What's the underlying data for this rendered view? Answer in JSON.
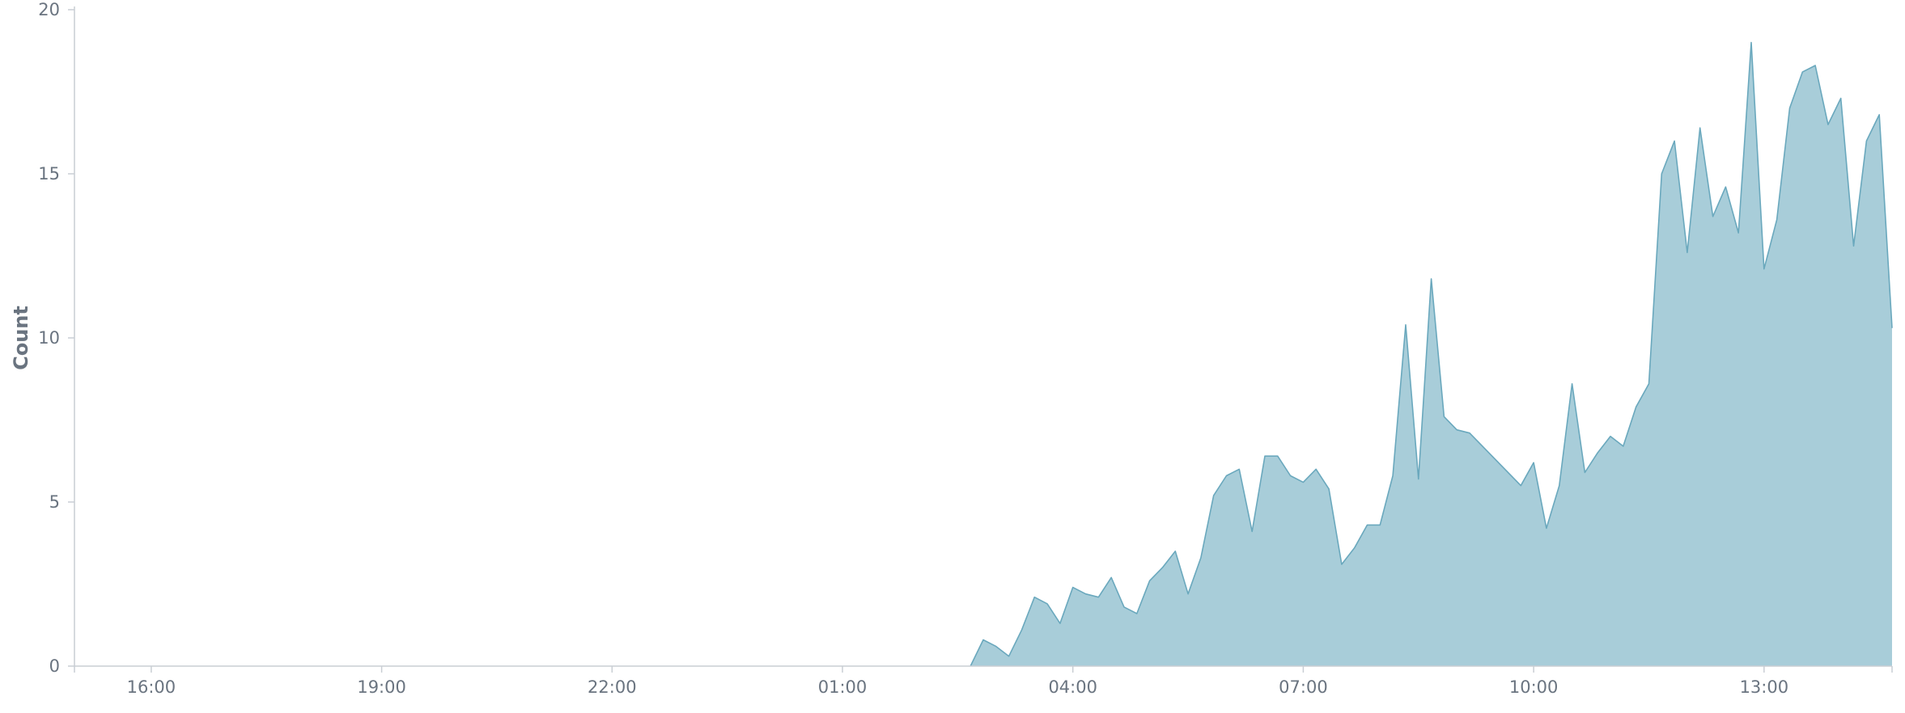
{
  "chart_data": {
    "type": "area",
    "title": "",
    "xlabel": "",
    "ylabel": "Count",
    "ylim": [
      0,
      20
    ],
    "xlim": [
      "15:00",
      "14:40"
    ],
    "x_ticks": [
      "16:00",
      "19:00",
      "22:00",
      "01:00",
      "04:00",
      "07:00",
      "10:00",
      "13:00"
    ],
    "y_ticks": [
      0,
      5,
      10,
      15,
      20
    ],
    "grid": false,
    "legend": "none",
    "colors": {
      "fill": "#a8cdd9",
      "stroke": "#6aa8bd",
      "axis": "#c9ced4",
      "text": "#6a7480"
    },
    "series": [
      {
        "values": [
          [
            "02:40",
            0
          ],
          [
            "02:50",
            0.8
          ],
          [
            "03:00",
            0.6
          ],
          [
            "03:10",
            0.3
          ],
          [
            "03:20",
            1.1
          ],
          [
            "03:30",
            2.1
          ],
          [
            "03:40",
            1.9
          ],
          [
            "03:50",
            1.3
          ],
          [
            "04:00",
            2.4
          ],
          [
            "04:10",
            2.2
          ],
          [
            "04:20",
            2.1
          ],
          [
            "04:30",
            2.7
          ],
          [
            "04:40",
            1.8
          ],
          [
            "04:50",
            1.6
          ],
          [
            "05:00",
            2.6
          ],
          [
            "05:10",
            3.0
          ],
          [
            "05:20",
            3.5
          ],
          [
            "05:30",
            2.2
          ],
          [
            "05:40",
            3.3
          ],
          [
            "05:50",
            5.2
          ],
          [
            "06:00",
            5.8
          ],
          [
            "06:10",
            6.0
          ],
          [
            "06:20",
            4.1
          ],
          [
            "06:30",
            6.4
          ],
          [
            "06:40",
            6.4
          ],
          [
            "06:50",
            5.8
          ],
          [
            "07:00",
            5.6
          ],
          [
            "07:10",
            6.0
          ],
          [
            "07:20",
            5.4
          ],
          [
            "07:30",
            3.1
          ],
          [
            "07:40",
            3.6
          ],
          [
            "07:50",
            4.3
          ],
          [
            "08:00",
            4.3
          ],
          [
            "08:10",
            5.8
          ],
          [
            "08:20",
            10.4
          ],
          [
            "08:30",
            5.7
          ],
          [
            "08:40",
            11.8
          ],
          [
            "08:50",
            7.6
          ],
          [
            "09:00",
            7.2
          ],
          [
            "09:10",
            7.1
          ],
          [
            "09:50",
            5.5
          ],
          [
            "10:00",
            6.2
          ],
          [
            "10:10",
            4.2
          ],
          [
            "10:20",
            5.5
          ],
          [
            "10:30",
            8.6
          ],
          [
            "10:40",
            5.9
          ],
          [
            "10:50",
            6.5
          ],
          [
            "11:00",
            7.0
          ],
          [
            "11:10",
            6.7
          ],
          [
            "11:20",
            7.9
          ],
          [
            "11:30",
            8.6
          ],
          [
            "11:40",
            15.0
          ],
          [
            "11:50",
            16.0
          ],
          [
            "12:00",
            12.6
          ],
          [
            "12:10",
            16.4
          ],
          [
            "12:20",
            13.7
          ],
          [
            "12:30",
            14.6
          ],
          [
            "12:40",
            13.2
          ],
          [
            "12:50",
            19.0
          ],
          [
            "13:00",
            12.1
          ],
          [
            "13:10",
            13.6
          ],
          [
            "13:20",
            17.0
          ],
          [
            "13:30",
            18.1
          ],
          [
            "13:40",
            18.3
          ],
          [
            "13:50",
            16.5
          ],
          [
            "14:00",
            17.3
          ],
          [
            "14:10",
            12.8
          ],
          [
            "14:20",
            16.0
          ],
          [
            "14:30",
            16.8
          ],
          [
            "14:40",
            10.3
          ]
        ]
      }
    ]
  }
}
